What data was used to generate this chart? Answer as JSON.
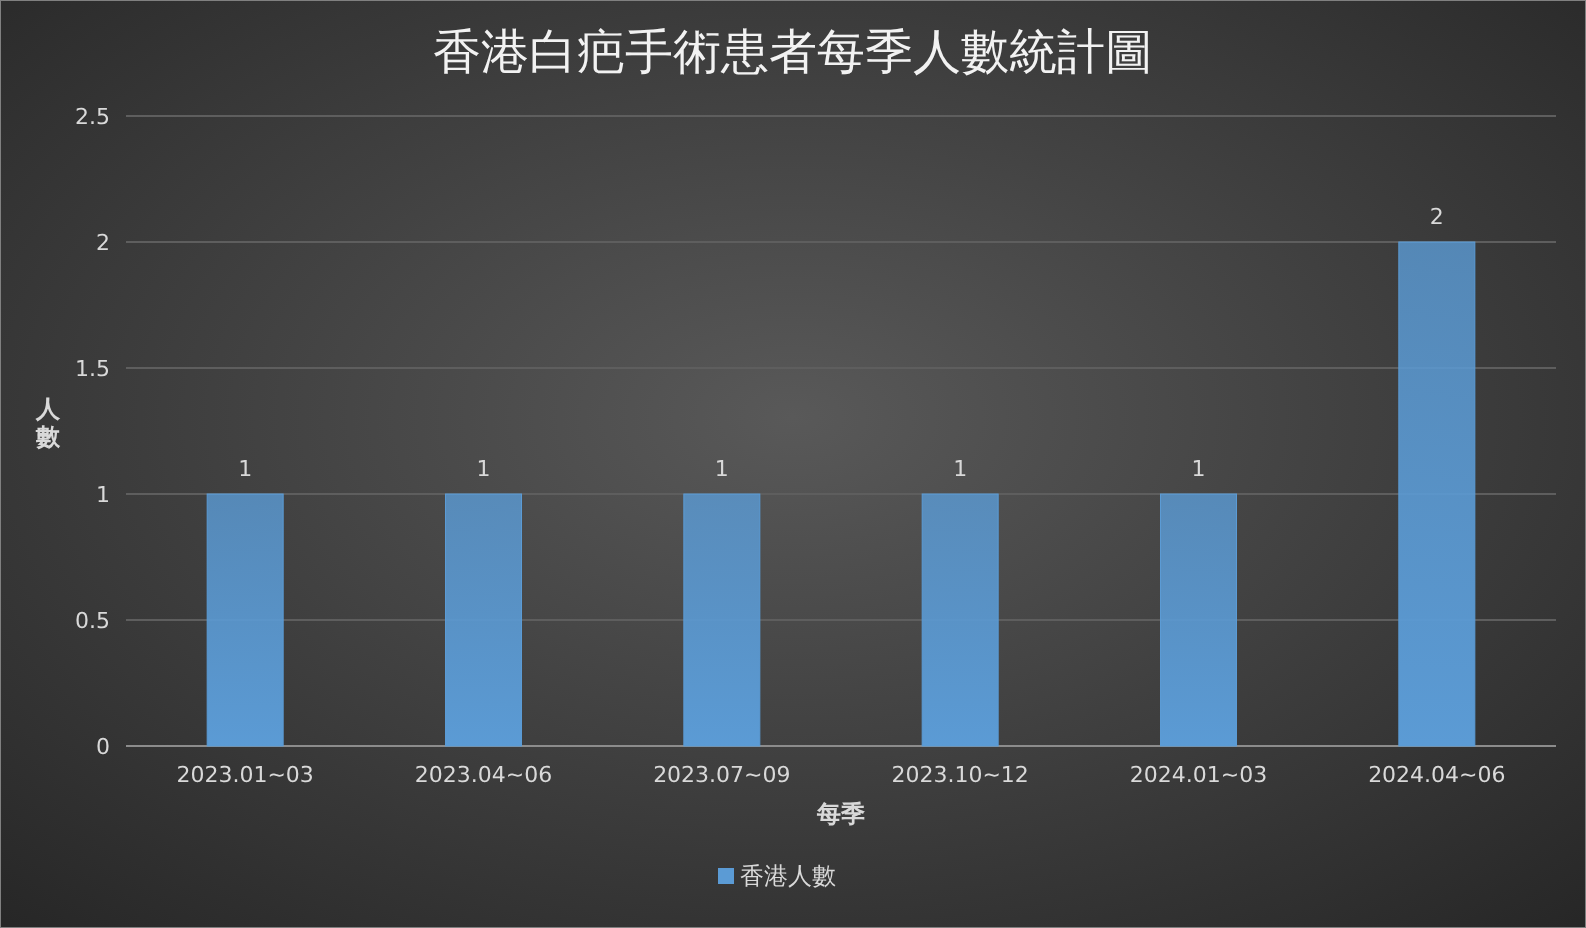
{
  "chart_data": {
    "type": "bar",
    "title": "香港白疤手術患者每季人數統計圖",
    "xlabel": "每季",
    "ylabel": "人數",
    "categories": [
      "2023.01~03",
      "2023.04~06",
      "2023.07~09",
      "2023.10~12",
      "2024.01~03",
      "2024.04~06"
    ],
    "series": [
      {
        "name": "香港人數",
        "color": "#5b9bd5",
        "values": [
          1,
          1,
          1,
          1,
          1,
          2
        ]
      }
    ],
    "ylim": [
      0,
      2.5
    ],
    "yticks": [
      0,
      0.5,
      1,
      1.5,
      2,
      2.5
    ],
    "grid": "y",
    "legend": "bottom",
    "data_labels": true
  }
}
